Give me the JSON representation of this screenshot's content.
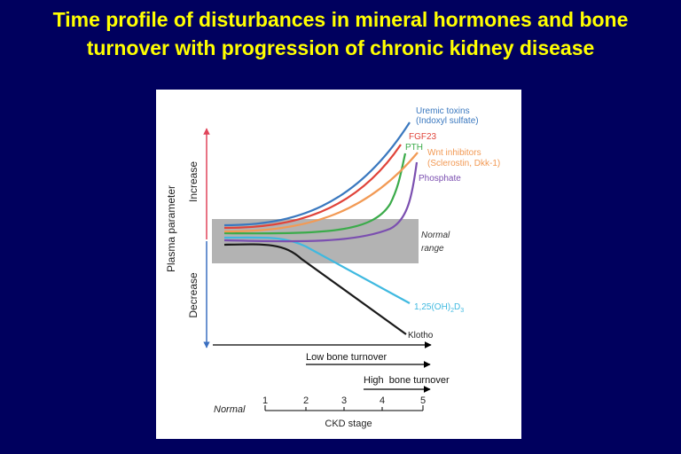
{
  "title": {
    "line1": "Time profile of disturbances in mineral hormones and bone",
    "line2": "turnover with progression of chronic kidney disease"
  },
  "diagram": {
    "y_axis_label": "Plasma parameter",
    "increase_label": "Increase",
    "decrease_label": "Decrease",
    "normal_range": [
      "Normal",
      "range"
    ],
    "curves": {
      "uremic": [
        "Uremic toxins",
        "(Indoxyl sulfate)"
      ],
      "fgf23": "FGF23",
      "pth": "PTH",
      "wnt": [
        "Wnt inhibitors",
        "(Sclerostin, Dkk-1)"
      ],
      "phosphate": "Phosphate",
      "vitd": {
        "main": "1,25(OH)",
        "sub1": "2",
        "mid": "D",
        "sub2": "3"
      },
      "klotho": "Klotho"
    },
    "low_turnover": "Low bone turnover",
    "high_turnover": "High  bone turnover",
    "scale_normal": "Normal",
    "ckd_stages": [
      "1",
      "2",
      "3",
      "4",
      "5"
    ],
    "x_axis_label": "CKD stage"
  },
  "colors": {
    "uremic": "#3a78bf",
    "fgf23": "#e0443a",
    "pth": "#3bab4a",
    "wnt": "#f29a55",
    "phosphate": "#7b4fb0",
    "vitd": "#3fb9e0",
    "klotho": "#1a1a1a",
    "increase": "#e0445a",
    "decrease": "#3a6fc0"
  }
}
